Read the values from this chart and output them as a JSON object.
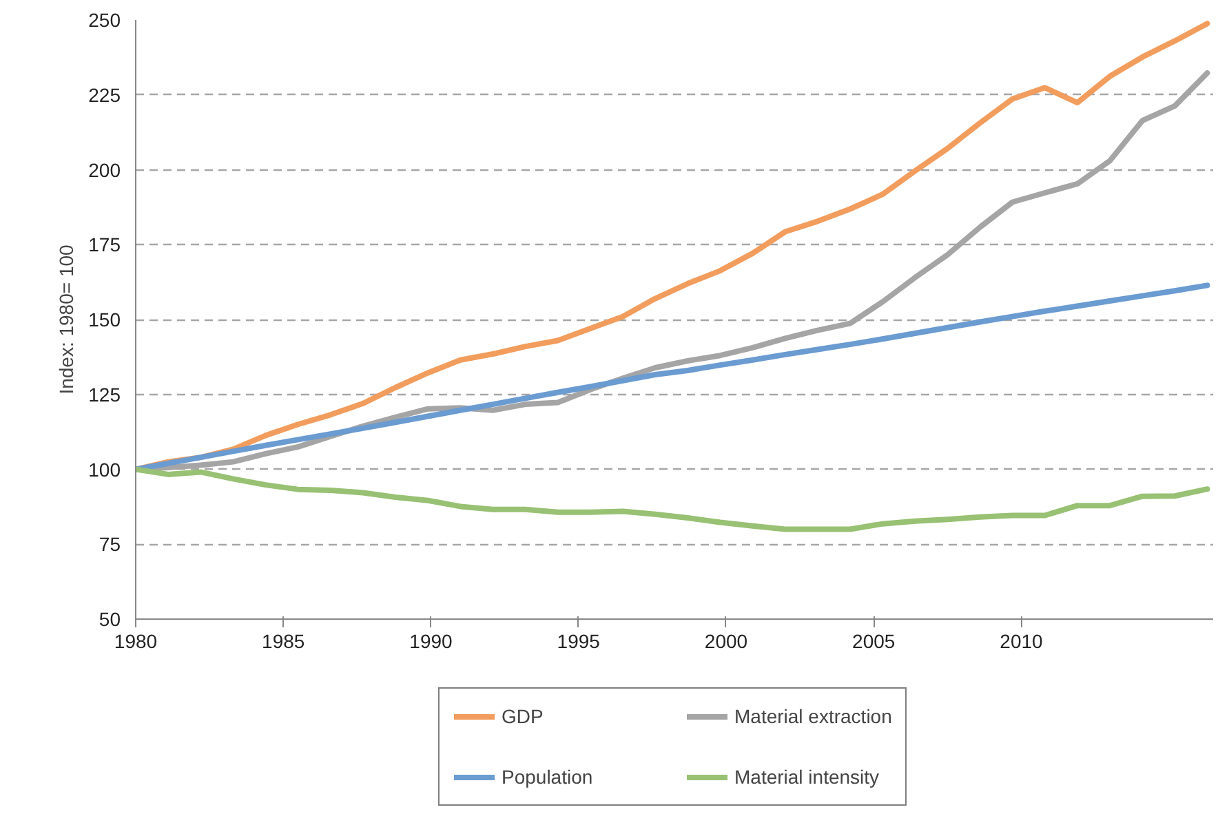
{
  "chart_data": {
    "type": "line",
    "ylabel": "Index: 1980= 100",
    "x": [
      1980.0,
      1981.1,
      1982.2,
      1983.3,
      1984.4,
      1985.5,
      1986.6,
      1987.7,
      1988.8,
      1989.9,
      1991.0,
      1992.1,
      1993.2,
      1994.3,
      1995.4,
      1996.5,
      1997.6,
      1998.7,
      1999.8,
      2000.9,
      2002.0,
      2003.1,
      2004.2,
      2005.3,
      2006.4,
      2007.5,
      2008.6,
      2009.7,
      2010.8,
      2011.9,
      2013.0,
      2014.1,
      2015.2,
      2016.3
    ],
    "series": [
      {
        "name": "GDP",
        "color": "#f29d5d",
        "values": [
          100,
          102.5,
          104,
          106.7,
          111.3,
          115,
          118.2,
          122,
          127.3,
          132.2,
          136.5,
          138.5,
          141,
          143,
          147,
          151,
          157,
          162,
          166.3,
          172.1,
          179.3,
          182.8,
          186.9,
          191.8,
          199.6,
          207.1,
          215.6,
          223.6,
          227.4,
          222.4,
          231.2,
          237.6,
          243,
          248.8
        ]
      },
      {
        "name": "Material extraction",
        "color": "#a5a5a5",
        "values": [
          100,
          100.6,
          101.4,
          102.5,
          105.2,
          107.5,
          111,
          114.4,
          117.4,
          120.2,
          120.5,
          119.7,
          121.7,
          122.3,
          126.6,
          130.4,
          133.9,
          136.2,
          138,
          140.6,
          143.7,
          146.4,
          148.7,
          155.9,
          164,
          171.6,
          180.8,
          189.2,
          192.3,
          195.3,
          203,
          216.4,
          221.3,
          232.3
        ]
      },
      {
        "name": "Population",
        "color": "#6a9bd1",
        "values": [
          100,
          102,
          104,
          106,
          108,
          109.9,
          111.8,
          113.7,
          115.7,
          117.7,
          119.7,
          121.7,
          123.7,
          125.7,
          127.6,
          129.6,
          131.6,
          133,
          134.8,
          136.5,
          138.3,
          140,
          141.7,
          143.5,
          145.4,
          147.3,
          149.2,
          151,
          152.8,
          154.5,
          156.2,
          157.9,
          159.6,
          161.4
        ]
      },
      {
        "name": "Material intensity",
        "color": "#98c173",
        "values": [
          100,
          98.3,
          99.1,
          96.8,
          94.8,
          93.3,
          93,
          92.2,
          90.7,
          89.6,
          87.6,
          86.6,
          86.6,
          85.7,
          85.7,
          86,
          85,
          83.8,
          82.3,
          81.1,
          80,
          80,
          80,
          81.8,
          82.7,
          83.3,
          84.1,
          84.6,
          84.6,
          87.9,
          87.9,
          91,
          91.1,
          93.4
        ]
      }
    ],
    "xlim": [
      1980,
      2016.5
    ],
    "xticks": [
      1980,
      1985,
      1990,
      1995,
      2000,
      2005,
      2010
    ],
    "ylim": [
      50,
      250
    ],
    "yticks": [
      50,
      75,
      100,
      125,
      150,
      175,
      200,
      225,
      250
    ],
    "grid": "y",
    "legend": "bottom",
    "marker": "none",
    "line_style": "solid"
  }
}
